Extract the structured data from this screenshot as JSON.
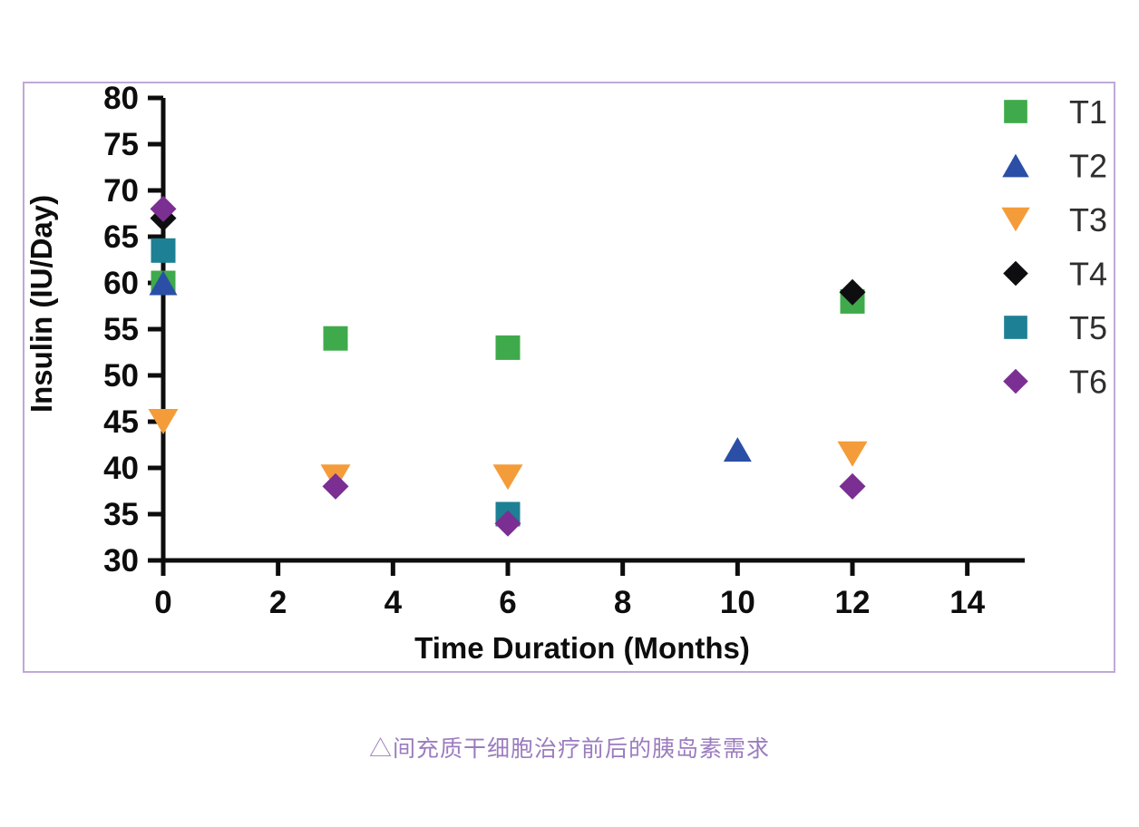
{
  "page": {
    "background": "#ffffff"
  },
  "panel": {
    "border_color": "#bfa9d7"
  },
  "chart_data": {
    "type": "scatter",
    "title": "",
    "xlabel": "Time Duration (Months)",
    "ylabel": "Insulin (IU/Day)",
    "xlim": [
      0,
      15
    ],
    "ylim": [
      30,
      80
    ],
    "x_ticks": [
      0,
      2,
      4,
      6,
      8,
      10,
      12,
      14
    ],
    "y_ticks": [
      30,
      35,
      40,
      45,
      50,
      55,
      60,
      65,
      70,
      75,
      80
    ],
    "grid": false,
    "legend_position": "right-top",
    "axis_color": "#0d0d0d",
    "tick_label_color": "#0d0d0d",
    "legend_text_color": "#2e2e2e",
    "series": [
      {
        "name": "T1",
        "marker": "square",
        "color": "#3faa4b",
        "points": [
          [
            0,
            60
          ],
          [
            3,
            54
          ],
          [
            6,
            53
          ],
          [
            12,
            58
          ]
        ]
      },
      {
        "name": "T2",
        "marker": "triangle-up",
        "color": "#2b4fa7",
        "points": [
          [
            0,
            60
          ],
          [
            10,
            42
          ]
        ]
      },
      {
        "name": "T3",
        "marker": "triangle-down",
        "color": "#f49c3a",
        "points": [
          [
            0,
            45
          ],
          [
            3,
            39
          ],
          [
            6,
            39
          ],
          [
            12,
            41.5
          ]
        ]
      },
      {
        "name": "T4",
        "marker": "diamond",
        "color": "#0e0e10",
        "points": [
          [
            0,
            67
          ],
          [
            12,
            59
          ]
        ]
      },
      {
        "name": "T5",
        "marker": "square",
        "color": "#1e8094",
        "points": [
          [
            0,
            63.5
          ],
          [
            6,
            35
          ]
        ]
      },
      {
        "name": "T6",
        "marker": "diamond",
        "color": "#7b2f92",
        "points": [
          [
            0,
            68
          ],
          [
            3,
            38
          ],
          [
            6,
            34
          ],
          [
            12,
            38
          ]
        ]
      }
    ]
  },
  "caption": {
    "text": "△间充质干细胞治疗前后的胰岛素需求",
    "color": "#9b7cbf"
  }
}
